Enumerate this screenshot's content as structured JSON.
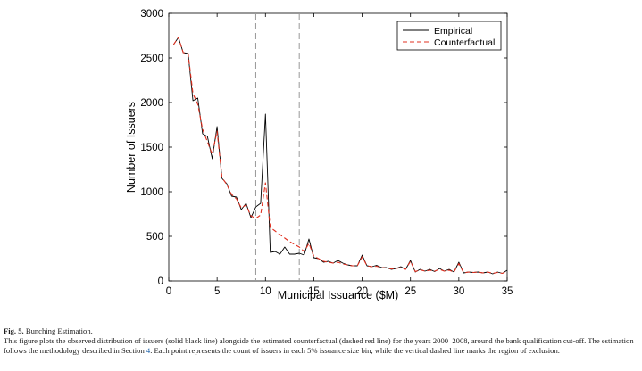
{
  "chart_data": {
    "type": "line",
    "xlabel": "Municipal Issuance ($M)",
    "ylabel": "Number of Issuers",
    "xlim": [
      0,
      35
    ],
    "ylim": [
      0,
      3000
    ],
    "xticks": [
      0,
      5,
      10,
      15,
      20,
      25,
      30,
      35
    ],
    "yticks": [
      0,
      500,
      1000,
      1500,
      2000,
      2500,
      3000
    ],
    "grid": false,
    "legend_position": "top-right",
    "vlines": [
      9,
      13.5
    ],
    "vline_color": "#999999",
    "series": [
      {
        "name": "Empirical",
        "color": "#000000",
        "style": "solid",
        "x": [
          0.5,
          1,
          1.5,
          2,
          2.5,
          3,
          3.5,
          4,
          4.5,
          5,
          5.5,
          6,
          6.5,
          7,
          7.5,
          8,
          8.5,
          9,
          9.5,
          10,
          10.5,
          11,
          11.5,
          12,
          12.5,
          13,
          13.5,
          14,
          14.5,
          15,
          15.5,
          16,
          16.5,
          17,
          17.5,
          18,
          18.5,
          19,
          19.5,
          20,
          20.5,
          21,
          21.5,
          22,
          22.5,
          23,
          23.5,
          24,
          24.5,
          25,
          25.5,
          26,
          26.5,
          27,
          27.5,
          28,
          28.5,
          29,
          29.5,
          30,
          30.5,
          31,
          31.5,
          32,
          32.5,
          33,
          33.5,
          34,
          34.5,
          35
        ],
        "values": [
          2650,
          2730,
          2560,
          2550,
          2020,
          2050,
          1650,
          1620,
          1370,
          1730,
          1150,
          1090,
          950,
          940,
          800,
          870,
          710,
          830,
          870,
          1870,
          320,
          330,
          300,
          380,
          300,
          300,
          310,
          290,
          470,
          260,
          250,
          210,
          220,
          200,
          230,
          200,
          180,
          170,
          170,
          290,
          170,
          160,
          175,
          150,
          150,
          130,
          140,
          160,
          130,
          230,
          100,
          130,
          110,
          130,
          105,
          140,
          110,
          130,
          100,
          210,
          90,
          100,
          95,
          100,
          90,
          100,
          80,
          100,
          85,
          120
        ]
      },
      {
        "name": "Counterfactual",
        "color": "#e03020",
        "style": "dashed",
        "x": [
          0.5,
          1,
          1.5,
          2,
          2.5,
          3,
          3.5,
          4,
          4.5,
          5,
          5.5,
          6,
          6.5,
          7,
          7.5,
          8,
          8.5,
          9,
          9.5,
          10,
          10.5,
          11,
          11.5,
          12,
          12.5,
          13,
          13.5,
          14,
          14.5,
          15,
          15.5,
          16,
          16.5,
          17,
          17.5,
          18,
          18.5,
          19,
          19.5,
          20,
          20.5,
          21,
          21.5,
          22,
          22.5,
          23,
          23.5,
          24,
          24.5,
          25,
          25.5,
          26,
          26.5,
          27,
          27.5,
          28,
          28.5,
          29,
          29.5,
          30,
          30.5,
          31,
          31.5,
          32,
          32.5,
          33,
          33.5,
          34,
          34.5,
          35
        ],
        "values": [
          2650,
          2730,
          2560,
          2550,
          2100,
          1980,
          1700,
          1560,
          1420,
          1680,
          1160,
          1080,
          970,
          920,
          820,
          850,
          730,
          700,
          740,
          1100,
          600,
          560,
          520,
          480,
          440,
          410,
          380,
          330,
          420,
          280,
          250,
          220,
          210,
          200,
          210,
          190,
          180,
          170,
          170,
          270,
          170,
          160,
          165,
          150,
          145,
          135,
          140,
          150,
          130,
          220,
          105,
          125,
          110,
          120,
          110,
          130,
          110,
          120,
          100,
          195,
          90,
          100,
          95,
          100,
          90,
          100,
          85,
          95,
          85,
          110
        ]
      }
    ]
  },
  "caption": {
    "label": "Fig. 5.",
    "title": "Bunching Estimation.",
    "text_before_ref": "This figure plots the observed distribution of issuers (solid black line) alongside the estimated counterfactual (dashed red line) for the years 2000–2008, around the bank qualification cut-off. The estimation follows the methodology described in Section ",
    "section_ref": "4",
    "text_after_ref": ". Each point represents the count of issuers in each 5% issuance size bin, while the vertical dashed line marks the region of exclusion."
  }
}
